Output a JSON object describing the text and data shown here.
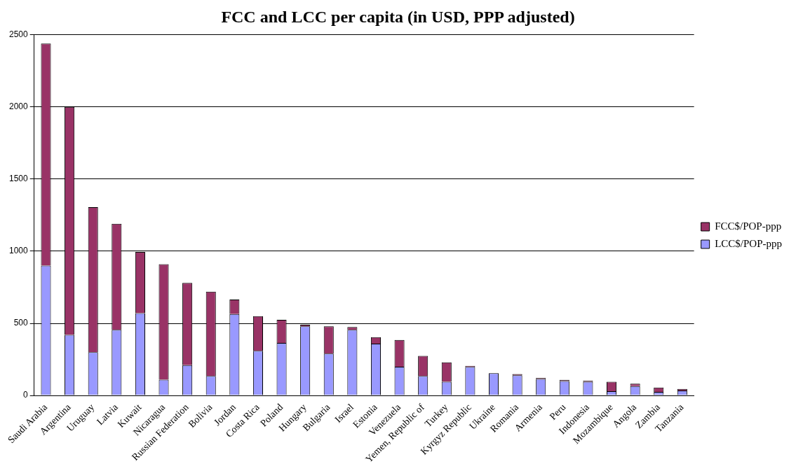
{
  "chart_data": {
    "type": "bar",
    "title": "FCC and LCC per capita (in USD, PPP adjusted)",
    "categories": [
      "Saudi Arabia",
      "Argentina",
      "Uruguay",
      "Latvia",
      "Kuwait",
      "Nicaragua",
      "Russian Federation",
      "Bolivia",
      "Jordan",
      "Costa Rica",
      "Poland",
      "Hungary",
      "Bulgaria",
      "Israel",
      "Estonia",
      "Venezuela",
      "Yemen, Republic of",
      "Turkey",
      "Kyrgyz Republic",
      "Ukraine",
      "Romania",
      "Armenia",
      "Peru",
      "Indonesia",
      "Mozambique",
      "Angola",
      "Zambia",
      "Tanzania"
    ],
    "stacked": true,
    "series": [
      {
        "name": "LCC$/POP-ppp",
        "color": "#9999ff",
        "values": [
          900,
          420,
          300,
          455,
          570,
          110,
          210,
          135,
          565,
          310,
          365,
          480,
          290,
          455,
          360,
          200,
          135,
          95,
          198,
          155,
          140,
          115,
          100,
          95,
          30,
          65,
          25,
          35
        ]
      },
      {
        "name": "FCC$/POP-ppp",
        "color": "#993366",
        "values": [
          1540,
          1580,
          1005,
          735,
          425,
          800,
          570,
          585,
          100,
          240,
          160,
          10,
          190,
          20,
          45,
          185,
          140,
          135,
          7,
          0,
          8,
          7,
          8,
          7,
          65,
          17,
          30,
          10
        ]
      }
    ],
    "ylim": [
      0,
      2500
    ],
    "yticks": [
      0,
      500,
      1000,
      1500,
      2000,
      2500
    ],
    "grid": "y",
    "legend": "right"
  }
}
